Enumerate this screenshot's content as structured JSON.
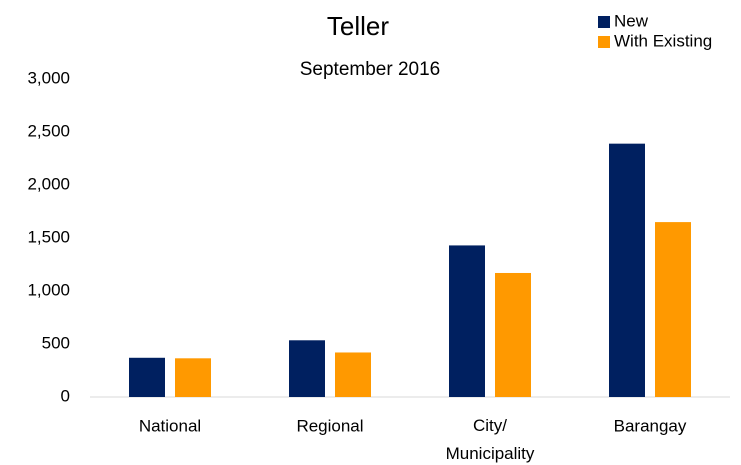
{
  "chart_data": {
    "type": "bar",
    "title": "Teller",
    "subtitle": "September 2016",
    "categories": [
      "National",
      "Regional",
      "City/ Municipality",
      "Barangay"
    ],
    "series": [
      {
        "name": "New",
        "color": "#002060",
        "values": [
          370,
          535,
          1430,
          2390
        ]
      },
      {
        "name": "With Existing",
        "color": "#ff9900",
        "values": [
          365,
          420,
          1170,
          1650
        ]
      }
    ],
    "ylim": [
      0,
      3000
    ],
    "yticks": [
      0,
      500,
      {
        "value": 1000,
        "label": "1,000"
      },
      {
        "value": 1500,
        "label": "1,500"
      },
      {
        "value": 2000,
        "label": "2,000"
      },
      {
        "value": 2500,
        "label": "2,500"
      },
      {
        "value": 3000,
        "label": "3,000"
      }
    ],
    "grid": false,
    "legend": "top-right"
  }
}
